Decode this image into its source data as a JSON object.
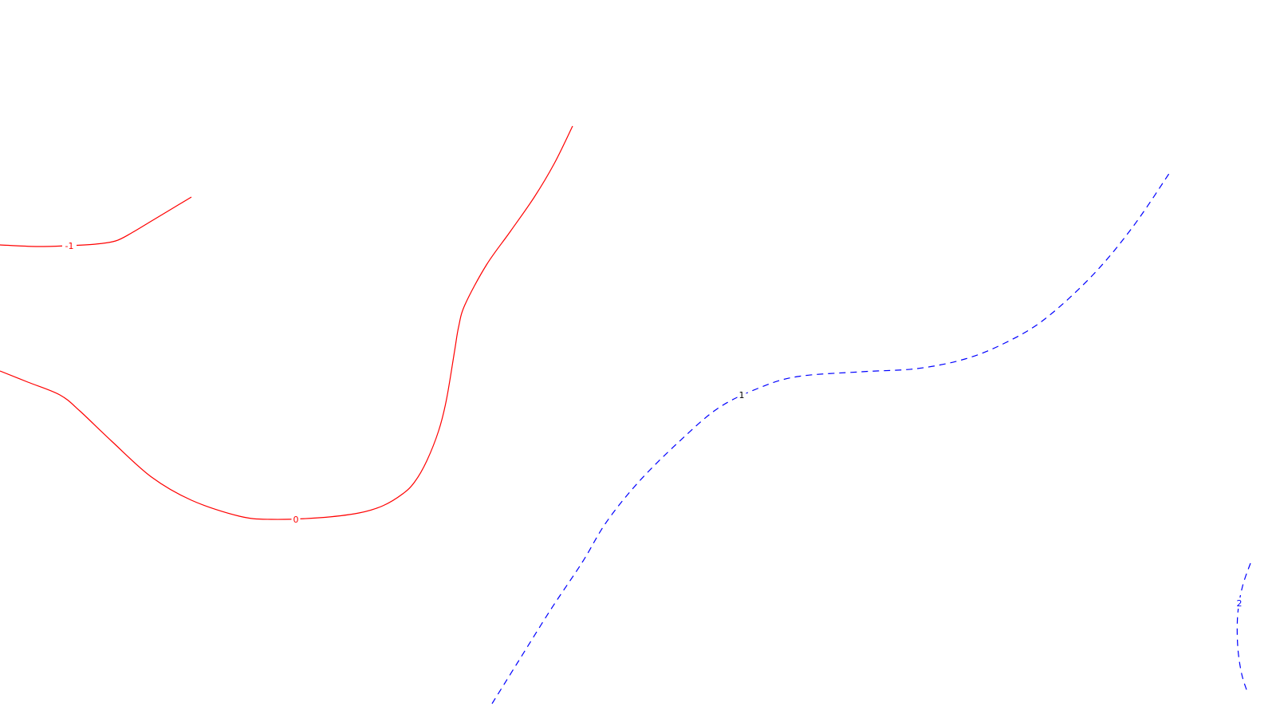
{
  "chart_data": {
    "type": "contour",
    "colors": {
      "background": "#ffffff",
      "negative_and_zero": "#ff0000",
      "positive": "#0000ff",
      "label_neutral": "#000000"
    },
    "contours": [
      {
        "level": "-1",
        "color": "#ff0000",
        "style": "solid",
        "label": "-1",
        "points": [
          [
            0,
            307
          ],
          [
            45,
            309
          ],
          [
            85,
            308
          ],
          [
            120,
            306
          ],
          [
            145,
            302
          ],
          [
            165,
            292
          ],
          [
            190,
            277
          ],
          [
            215,
            262
          ],
          [
            240,
            247
          ]
        ]
      },
      {
        "level": "0",
        "color": "#ff0000",
        "style": "solid",
        "label": "0",
        "points": [
          [
            0,
            465
          ],
          [
            35,
            479
          ],
          [
            75,
            495
          ],
          [
            100,
            515
          ],
          [
            140,
            553
          ],
          [
            190,
            598
          ],
          [
            240,
            627
          ],
          [
            300,
            647
          ],
          [
            340,
            651
          ],
          [
            400,
            649
          ],
          [
            450,
            643
          ],
          [
            480,
            634
          ],
          [
            505,
            619
          ],
          [
            520,
            604
          ],
          [
            535,
            578
          ],
          [
            550,
            540
          ],
          [
            560,
            500
          ],
          [
            570,
            440
          ],
          [
            575,
            410
          ],
          [
            583,
            382
          ],
          [
            610,
            332
          ],
          [
            640,
            290
          ],
          [
            670,
            247
          ],
          [
            695,
            205
          ],
          [
            718,
            158
          ]
        ]
      },
      {
        "level": "1",
        "color": "#0000ff",
        "style": "dashed",
        "label": "1",
        "label_color": "#000000",
        "points": [
          [
            617,
            882
          ],
          [
            650,
            829
          ],
          [
            690,
            765
          ],
          [
            730,
            705
          ],
          [
            760,
            655
          ],
          [
            800,
            605
          ],
          [
            850,
            555
          ],
          [
            900,
            512
          ],
          [
            950,
            487
          ],
          [
            1000,
            472
          ],
          [
            1080,
            466
          ],
          [
            1150,
            462
          ],
          [
            1210,
            450
          ],
          [
            1260,
            430
          ],
          [
            1310,
            400
          ],
          [
            1370,
            345
          ],
          [
            1420,
            285
          ],
          [
            1467,
            216
          ]
        ]
      },
      {
        "level": "2",
        "color": "#0000ff",
        "style": "dashed",
        "label": "2",
        "points": [
          [
            1568,
            706
          ],
          [
            1558,
            735
          ],
          [
            1552,
            770
          ],
          [
            1552,
            810
          ],
          [
            1557,
            845
          ],
          [
            1565,
            870
          ]
        ]
      }
    ],
    "labels": [
      {
        "text": "-1",
        "at": [
          87,
          308
        ],
        "color": "#ff0000"
      },
      {
        "text": "0",
        "at": [
          371,
          651
        ],
        "color": "#ff0000"
      },
      {
        "text": "1",
        "at": [
          930,
          495
        ],
        "color": "#000000"
      },
      {
        "text": "2",
        "at": [
          1554,
          756
        ],
        "color": "#0000ff"
      }
    ]
  }
}
